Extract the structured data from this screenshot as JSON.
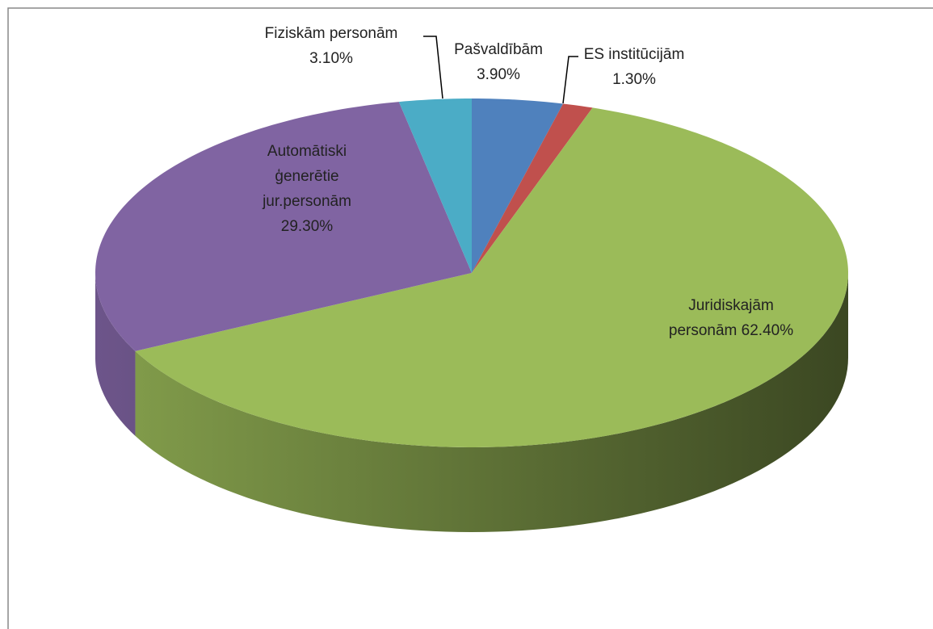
{
  "chart_data": {
    "type": "pie3d",
    "categories": [
      "Pašvaldībām",
      "ES institūcijām",
      "Juridiskajām personām",
      "Automātiski ģenerētie jur.personām",
      "Fiziskām personām"
    ],
    "values": [
      3.9,
      1.3,
      62.4,
      29.3,
      3.1
    ],
    "value_labels": [
      "3.90%",
      "1.30%",
      "62.40%",
      "29.30%",
      "3.10%"
    ],
    "colors": [
      "#4f81bd",
      "#c0504d",
      "#9bbb59",
      "#8064a2",
      "#4bacc6"
    ]
  }
}
